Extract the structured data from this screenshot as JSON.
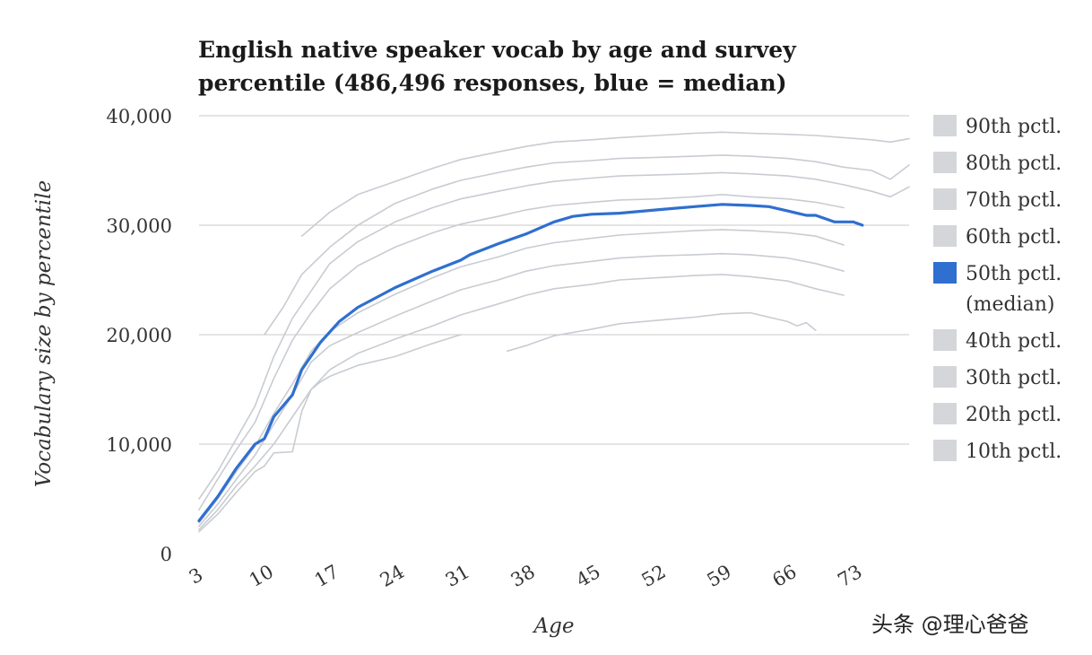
{
  "chart_data": {
    "type": "line",
    "title": [
      "English native speaker vocab by age and survey",
      "percentile (486,496 responses, blue = median)"
    ],
    "xlabel": "Age",
    "ylabel": "Vocabulary size by percentile",
    "xlim": [
      3,
      79
    ],
    "ylim": [
      0,
      40000
    ],
    "x_ticks": [
      "3",
      "10",
      "17",
      "24",
      "31",
      "38",
      "45",
      "52",
      "59",
      "66",
      "73"
    ],
    "y_ticks": [
      "0",
      "10,000",
      "20,000",
      "30,000",
      "40,000"
    ],
    "grid": true,
    "legend_position": "right",
    "colors": {
      "median": "#2f6fcf",
      "other": "#c8ccd2",
      "grid": "#c8c8c8"
    },
    "series": [
      {
        "name": [
          "90th pctl."
        ],
        "points": [
          [
            14,
            29000
          ],
          [
            17,
            31200
          ],
          [
            20,
            32800
          ],
          [
            24,
            34000
          ],
          [
            28,
            35200
          ],
          [
            31,
            36000
          ],
          [
            35,
            36700
          ],
          [
            38,
            37200
          ],
          [
            41,
            37600
          ],
          [
            45,
            37800
          ],
          [
            48,
            38000
          ],
          [
            52,
            38200
          ],
          [
            56,
            38400
          ],
          [
            59,
            38500
          ],
          [
            62,
            38400
          ],
          [
            66,
            38300
          ],
          [
            69,
            38200
          ],
          [
            72,
            38000
          ],
          [
            75,
            37800
          ],
          [
            77,
            37600
          ],
          [
            79,
            37900
          ]
        ]
      },
      {
        "name": [
          "80th pctl."
        ],
        "points": [
          [
            10,
            20000
          ],
          [
            12,
            22500
          ],
          [
            14,
            25500
          ],
          [
            17,
            28000
          ],
          [
            20,
            30000
          ],
          [
            24,
            32000
          ],
          [
            28,
            33300
          ],
          [
            31,
            34100
          ],
          [
            35,
            34800
          ],
          [
            38,
            35300
          ],
          [
            41,
            35700
          ],
          [
            45,
            35900
          ],
          [
            48,
            36100
          ],
          [
            52,
            36200
          ],
          [
            56,
            36300
          ],
          [
            59,
            36400
          ],
          [
            62,
            36300
          ],
          [
            66,
            36100
          ],
          [
            69,
            35800
          ],
          [
            72,
            35300
          ],
          [
            75,
            35000
          ],
          [
            77,
            34200
          ],
          [
            79,
            35500
          ]
        ]
      },
      {
        "name": [
          "70th pctl."
        ],
        "points": [
          [
            3,
            5000
          ],
          [
            5,
            7500
          ],
          [
            7,
            10500
          ],
          [
            9,
            13500
          ],
          [
            11,
            18000
          ],
          [
            13,
            21500
          ],
          [
            15,
            24000
          ],
          [
            17,
            26500
          ],
          [
            20,
            28500
          ],
          [
            24,
            30300
          ],
          [
            28,
            31600
          ],
          [
            31,
            32400
          ],
          [
            35,
            33100
          ],
          [
            38,
            33600
          ],
          [
            41,
            34000
          ],
          [
            45,
            34300
          ],
          [
            48,
            34500
          ],
          [
            52,
            34600
          ],
          [
            56,
            34700
          ],
          [
            59,
            34800
          ],
          [
            62,
            34700
          ],
          [
            66,
            34500
          ],
          [
            69,
            34200
          ],
          [
            72,
            33700
          ],
          [
            75,
            33100
          ],
          [
            77,
            32600
          ],
          [
            79,
            33500
          ]
        ]
      },
      {
        "name": [
          "60th pctl."
        ],
        "points": [
          [
            3,
            4000
          ],
          [
            5,
            6800
          ],
          [
            7,
            9500
          ],
          [
            9,
            12000
          ],
          [
            11,
            16000
          ],
          [
            13,
            19500
          ],
          [
            15,
            22000
          ],
          [
            17,
            24200
          ],
          [
            20,
            26300
          ],
          [
            24,
            28000
          ],
          [
            28,
            29300
          ],
          [
            31,
            30100
          ],
          [
            35,
            30800
          ],
          [
            38,
            31400
          ],
          [
            41,
            31800
          ],
          [
            45,
            32100
          ],
          [
            48,
            32300
          ],
          [
            52,
            32400
          ],
          [
            56,
            32600
          ],
          [
            59,
            32800
          ],
          [
            62,
            32600
          ],
          [
            66,
            32400
          ],
          [
            69,
            32100
          ],
          [
            72,
            31600
          ]
        ]
      },
      {
        "name": [
          "50th pctl.",
          "(median)"
        ],
        "median": true,
        "points": [
          [
            3,
            3000
          ],
          [
            5,
            5200
          ],
          [
            7,
            7800
          ],
          [
            9,
            10000
          ],
          [
            10,
            10500
          ],
          [
            11,
            12500
          ],
          [
            13,
            14500
          ],
          [
            14,
            16800
          ],
          [
            16,
            19300
          ],
          [
            18,
            21200
          ],
          [
            20,
            22500
          ],
          [
            24,
            24300
          ],
          [
            28,
            25800
          ],
          [
            31,
            26800
          ],
          [
            32,
            27300
          ],
          [
            35,
            28300
          ],
          [
            38,
            29200
          ],
          [
            41,
            30300
          ],
          [
            43,
            30800
          ],
          [
            45,
            31000
          ],
          [
            48,
            31100
          ],
          [
            52,
            31400
          ],
          [
            56,
            31700
          ],
          [
            59,
            31900
          ],
          [
            62,
            31800
          ],
          [
            64,
            31700
          ],
          [
            66,
            31300
          ],
          [
            68,
            30900
          ],
          [
            69,
            30900
          ],
          [
            71,
            30300
          ],
          [
            73,
            30300
          ],
          [
            74,
            30000
          ]
        ]
      },
      {
        "name": [
          "40th pctl."
        ],
        "points": [
          [
            3,
            2800
          ],
          [
            5,
            5000
          ],
          [
            7,
            7500
          ],
          [
            9,
            9800
          ],
          [
            11,
            12800
          ],
          [
            13,
            15500
          ],
          [
            15,
            18500
          ],
          [
            17,
            20300
          ],
          [
            20,
            22000
          ],
          [
            24,
            23700
          ],
          [
            28,
            25200
          ],
          [
            31,
            26200
          ],
          [
            35,
            27100
          ],
          [
            38,
            27900
          ],
          [
            41,
            28400
          ],
          [
            45,
            28800
          ],
          [
            48,
            29100
          ],
          [
            52,
            29300
          ],
          [
            56,
            29500
          ],
          [
            59,
            29600
          ],
          [
            62,
            29500
          ],
          [
            66,
            29300
          ],
          [
            69,
            29000
          ],
          [
            72,
            28200
          ]
        ]
      },
      {
        "name": [
          "30th pctl."
        ],
        "points": [
          [
            3,
            2500
          ],
          [
            5,
            4500
          ],
          [
            7,
            6800
          ],
          [
            9,
            9000
          ],
          [
            11,
            11800
          ],
          [
            13,
            14500
          ],
          [
            15,
            17500
          ],
          [
            17,
            19000
          ],
          [
            20,
            20200
          ],
          [
            24,
            21700
          ],
          [
            28,
            23100
          ],
          [
            31,
            24100
          ],
          [
            35,
            25000
          ],
          [
            38,
            25800
          ],
          [
            41,
            26300
          ],
          [
            45,
            26700
          ],
          [
            48,
            27000
          ],
          [
            52,
            27200
          ],
          [
            56,
            27300
          ],
          [
            59,
            27400
          ],
          [
            62,
            27300
          ],
          [
            66,
            27000
          ],
          [
            69,
            26500
          ],
          [
            72,
            25800
          ]
        ]
      },
      {
        "name": [
          "20th pctl."
        ],
        "points": [
          [
            3,
            2200
          ],
          [
            5,
            4000
          ],
          [
            7,
            6200
          ],
          [
            9,
            8000
          ],
          [
            11,
            10000
          ],
          [
            13,
            12500
          ],
          [
            15,
            15000
          ],
          [
            17,
            16800
          ],
          [
            20,
            18300
          ],
          [
            24,
            19600
          ],
          [
            28,
            20800
          ],
          [
            31,
            21800
          ],
          [
            35,
            22800
          ],
          [
            38,
            23600
          ],
          [
            41,
            24200
          ],
          [
            45,
            24600
          ],
          [
            48,
            25000
          ],
          [
            52,
            25200
          ],
          [
            56,
            25400
          ],
          [
            59,
            25500
          ],
          [
            62,
            25300
          ],
          [
            66,
            24900
          ],
          [
            69,
            24200
          ],
          [
            72,
            23600
          ]
        ]
      },
      {
        "name": [
          "10th pctl."
        ],
        "points": [
          [
            3,
            2000
          ],
          [
            5,
            3600
          ],
          [
            7,
            5600
          ],
          [
            9,
            7500
          ],
          [
            10,
            8000
          ],
          [
            11,
            9200
          ],
          [
            13,
            9300
          ],
          [
            14,
            13000
          ],
          [
            15,
            15000
          ],
          [
            16,
            15700
          ],
          [
            17,
            16200
          ],
          [
            20,
            17200
          ],
          [
            24,
            18000
          ],
          [
            28,
            19200
          ],
          [
            31,
            20000
          ]
        ]
      },
      {
        "name": [],
        "points": [
          [
            36,
            18500
          ],
          [
            38,
            19000
          ],
          [
            41,
            19900
          ],
          [
            45,
            20500
          ],
          [
            48,
            21000
          ],
          [
            52,
            21300
          ],
          [
            56,
            21600
          ],
          [
            59,
            21900
          ],
          [
            62,
            22000
          ],
          [
            64,
            21600
          ],
          [
            66,
            21200
          ],
          [
            67,
            20800
          ],
          [
            68,
            21100
          ],
          [
            69,
            20400
          ]
        ]
      }
    ]
  },
  "watermark": "头条 @理心爸爸"
}
